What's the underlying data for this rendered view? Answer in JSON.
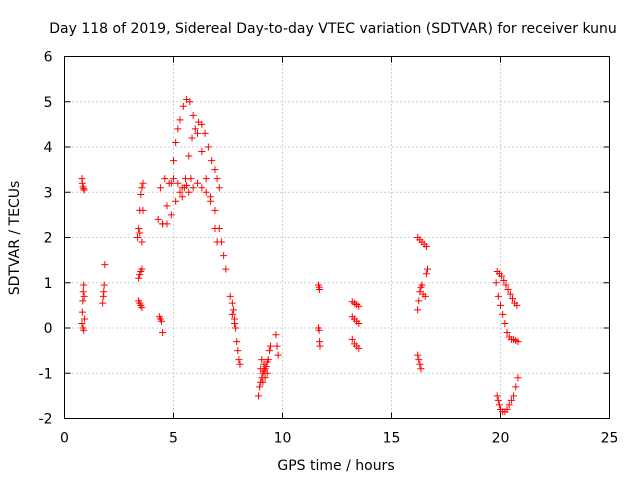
{
  "chart_data": {
    "type": "scatter",
    "title": "Day 118 of 2019, Sidereal Day-to-day VTEC variation (SDTVAR) for receiver kunu",
    "xlabel": "GPS time / hours",
    "ylabel": "SDTVAR / TECUs",
    "xlim": [
      0,
      25
    ],
    "ylim": [
      -2,
      6
    ],
    "xticks": [
      0,
      5,
      10,
      15,
      20,
      25
    ],
    "yticks": [
      -2,
      -1,
      0,
      1,
      2,
      3,
      4,
      5,
      6
    ],
    "xtick_labels": [
      "0",
      "5",
      "10",
      "15",
      "20",
      "25"
    ],
    "ytick_labels": [
      "-2",
      "-1",
      "0",
      "1",
      "2",
      "3",
      "4",
      "5",
      "6"
    ],
    "grid": true,
    "legend": "none",
    "marker": "+",
    "color": "#ff0000",
    "series": [
      {
        "name": "seg1",
        "points": [
          [
            0.8,
            3.3
          ],
          [
            0.82,
            3.2
          ],
          [
            0.85,
            3.12
          ],
          [
            0.88,
            3.08
          ],
          [
            0.9,
            3.05
          ]
        ]
      },
      {
        "name": "seg2",
        "points": [
          [
            0.8,
            0.1
          ],
          [
            0.82,
            0.35
          ],
          [
            0.84,
            0.6
          ],
          [
            0.86,
            0.8
          ],
          [
            0.88,
            0.95
          ],
          [
            0.9,
            0.7
          ],
          [
            0.92,
            0.2
          ],
          [
            0.85,
            0.0
          ],
          [
            0.88,
            -0.05
          ]
        ]
      },
      {
        "name": "seg3",
        "points": [
          [
            1.75,
            0.55
          ],
          [
            1.78,
            0.7
          ],
          [
            1.8,
            0.8
          ],
          [
            1.82,
            0.95
          ],
          [
            1.85,
            1.4
          ]
        ]
      },
      {
        "name": "seg4",
        "points": [
          [
            3.35,
            2.0
          ],
          [
            3.4,
            2.2
          ],
          [
            3.45,
            2.6
          ],
          [
            3.5,
            2.95
          ],
          [
            3.55,
            3.1
          ],
          [
            3.6,
            3.2
          ],
          [
            3.45,
            2.1
          ],
          [
            3.55,
            1.9
          ],
          [
            3.6,
            2.6
          ]
        ]
      },
      {
        "name": "seg5",
        "points": [
          [
            3.4,
            1.1
          ],
          [
            3.45,
            1.18
          ],
          [
            3.5,
            1.25
          ],
          [
            3.55,
            1.3
          ]
        ]
      },
      {
        "name": "seg6",
        "points": [
          [
            3.4,
            0.6
          ],
          [
            3.45,
            0.55
          ],
          [
            3.5,
            0.5
          ],
          [
            3.55,
            0.45
          ]
        ]
      },
      {
        "name": "seg7",
        "points": [
          [
            4.35,
            0.25
          ],
          [
            4.4,
            0.2
          ],
          [
            4.45,
            0.15
          ],
          [
            4.5,
            -0.1
          ]
        ]
      },
      {
        "name": "seg8",
        "points": [
          [
            4.3,
            2.4
          ],
          [
            4.5,
            2.3
          ],
          [
            4.7,
            2.3
          ],
          [
            4.9,
            2.5
          ],
          [
            5.1,
            2.8
          ],
          [
            5.3,
            3.0
          ],
          [
            5.5,
            3.1
          ],
          [
            5.7,
            3.0
          ],
          [
            5.9,
            3.1
          ],
          [
            6.1,
            3.2
          ],
          [
            6.3,
            3.1
          ],
          [
            6.5,
            3.0
          ],
          [
            6.7,
            2.9
          ],
          [
            6.9,
            2.6
          ],
          [
            7.1,
            2.2
          ],
          [
            7.2,
            1.9
          ],
          [
            7.3,
            1.6
          ],
          [
            7.4,
            1.3
          ]
        ]
      },
      {
        "name": "seg9",
        "points": [
          [
            4.4,
            3.1
          ],
          [
            4.6,
            3.3
          ],
          [
            4.8,
            3.2
          ],
          [
            5.0,
            3.3
          ],
          [
            5.2,
            3.2
          ],
          [
            5.4,
            3.1
          ],
          [
            5.6,
            3.15
          ],
          [
            5.8,
            3.3
          ]
        ]
      },
      {
        "name": "seg10",
        "points": [
          [
            4.5,
            2.3
          ],
          [
            4.7,
            2.7
          ],
          [
            4.9,
            3.2
          ],
          [
            5.0,
            3.7
          ],
          [
            5.1,
            4.1
          ],
          [
            5.2,
            4.4
          ],
          [
            5.3,
            4.6
          ],
          [
            5.45,
            4.9
          ],
          [
            5.6,
            5.05
          ],
          [
            5.75,
            5.0
          ],
          [
            5.9,
            4.7
          ],
          [
            6.1,
            4.3
          ],
          [
            6.3,
            3.9
          ],
          [
            6.5,
            3.3
          ],
          [
            6.7,
            2.8
          ],
          [
            6.9,
            2.2
          ],
          [
            7.0,
            1.9
          ]
        ]
      },
      {
        "name": "seg11",
        "points": [
          [
            5.4,
            2.9
          ],
          [
            5.55,
            3.3
          ],
          [
            5.7,
            3.8
          ],
          [
            5.85,
            4.2
          ],
          [
            6.0,
            4.4
          ],
          [
            6.15,
            4.55
          ],
          [
            6.3,
            4.5
          ],
          [
            6.45,
            4.3
          ],
          [
            6.6,
            4.0
          ],
          [
            6.75,
            3.7
          ],
          [
            6.9,
            3.5
          ],
          [
            7.0,
            3.3
          ],
          [
            7.1,
            3.1
          ]
        ]
      },
      {
        "name": "seg12",
        "points": [
          [
            7.6,
            0.7
          ],
          [
            7.7,
            0.55
          ],
          [
            7.75,
            0.4
          ],
          [
            7.8,
            0.2
          ],
          [
            7.85,
            0.0
          ],
          [
            7.9,
            -0.3
          ],
          [
            7.95,
            -0.5
          ],
          [
            8.0,
            -0.7
          ],
          [
            8.05,
            -0.8
          ],
          [
            7.7,
            0.3
          ],
          [
            7.8,
            0.1
          ]
        ]
      },
      {
        "name": "seg13",
        "points": [
          [
            8.9,
            -1.5
          ],
          [
            8.95,
            -1.3
          ],
          [
            9.0,
            -1.2
          ],
          [
            9.05,
            -1.1
          ],
          [
            9.1,
            -1.0
          ],
          [
            9.15,
            -0.95
          ],
          [
            9.2,
            -0.9
          ],
          [
            9.25,
            -0.85
          ],
          [
            9.3,
            -0.75
          ],
          [
            9.35,
            -0.7
          ],
          [
            9.4,
            -0.5
          ],
          [
            9.45,
            -0.4
          ],
          [
            9.0,
            -0.9
          ],
          [
            9.1,
            -1.2
          ],
          [
            9.2,
            -1.1
          ],
          [
            9.3,
            -1.0
          ],
          [
            9.05,
            -0.7
          ],
          [
            9.15,
            -0.8
          ]
        ]
      },
      {
        "name": "seg14",
        "points": [
          [
            9.7,
            -0.15
          ],
          [
            9.75,
            -0.4
          ],
          [
            9.8,
            -0.6
          ]
        ]
      },
      {
        "name": "seg15",
        "points": [
          [
            11.65,
            0.95
          ],
          [
            11.68,
            0.9
          ],
          [
            11.7,
            0.85
          ],
          [
            11.65,
            0.0
          ],
          [
            11.68,
            -0.05
          ],
          [
            11.7,
            -0.3
          ],
          [
            11.72,
            -0.4
          ]
        ]
      },
      {
        "name": "seg16",
        "points": [
          [
            13.2,
            0.58
          ],
          [
            13.3,
            0.55
          ],
          [
            13.4,
            0.52
          ],
          [
            13.5,
            0.48
          ],
          [
            13.2,
            0.25
          ],
          [
            13.3,
            0.2
          ],
          [
            13.4,
            0.15
          ],
          [
            13.5,
            0.1
          ],
          [
            13.2,
            -0.25
          ],
          [
            13.3,
            -0.35
          ],
          [
            13.4,
            -0.4
          ],
          [
            13.5,
            -0.45
          ]
        ]
      },
      {
        "name": "seg17",
        "points": [
          [
            16.2,
            2.0
          ],
          [
            16.3,
            1.95
          ],
          [
            16.4,
            1.9
          ],
          [
            16.5,
            1.85
          ],
          [
            16.6,
            1.8
          ]
        ]
      },
      {
        "name": "seg18",
        "points": [
          [
            16.2,
            0.4
          ],
          [
            16.25,
            0.6
          ],
          [
            16.3,
            0.8
          ],
          [
            16.35,
            0.9
          ],
          [
            16.4,
            0.95
          ],
          [
            16.45,
            0.75
          ],
          [
            16.55,
            0.7
          ],
          [
            16.6,
            1.2
          ],
          [
            16.65,
            1.3
          ]
        ]
      },
      {
        "name": "seg19",
        "points": [
          [
            16.2,
            -0.6
          ],
          [
            16.25,
            -0.7
          ],
          [
            16.3,
            -0.8
          ],
          [
            16.35,
            -0.9
          ]
        ]
      },
      {
        "name": "seg20",
        "points": [
          [
            19.85,
            1.25
          ],
          [
            19.95,
            1.2
          ],
          [
            20.05,
            1.15
          ],
          [
            20.15,
            1.05
          ],
          [
            20.25,
            0.95
          ],
          [
            20.35,
            0.85
          ],
          [
            20.45,
            0.75
          ],
          [
            20.55,
            0.65
          ],
          [
            20.65,
            0.55
          ],
          [
            20.75,
            0.5
          ]
        ]
      },
      {
        "name": "seg21",
        "points": [
          [
            19.8,
            1.0
          ],
          [
            19.9,
            0.7
          ],
          [
            20.0,
            0.5
          ],
          [
            20.1,
            0.3
          ],
          [
            20.2,
            0.1
          ],
          [
            20.3,
            -0.1
          ],
          [
            20.4,
            -0.2
          ],
          [
            20.5,
            -0.25
          ],
          [
            20.6,
            -0.25
          ],
          [
            20.7,
            -0.28
          ],
          [
            20.8,
            -0.3
          ]
        ]
      },
      {
        "name": "seg22",
        "points": [
          [
            19.85,
            -1.5
          ],
          [
            19.9,
            -1.6
          ],
          [
            19.95,
            -1.7
          ],
          [
            20.0,
            -1.8
          ],
          [
            20.1,
            -1.85
          ],
          [
            20.2,
            -1.85
          ],
          [
            20.3,
            -1.8
          ],
          [
            20.4,
            -1.7
          ],
          [
            20.5,
            -1.6
          ],
          [
            20.6,
            -1.5
          ],
          [
            20.7,
            -1.3
          ],
          [
            20.8,
            -1.1
          ]
        ]
      }
    ]
  }
}
